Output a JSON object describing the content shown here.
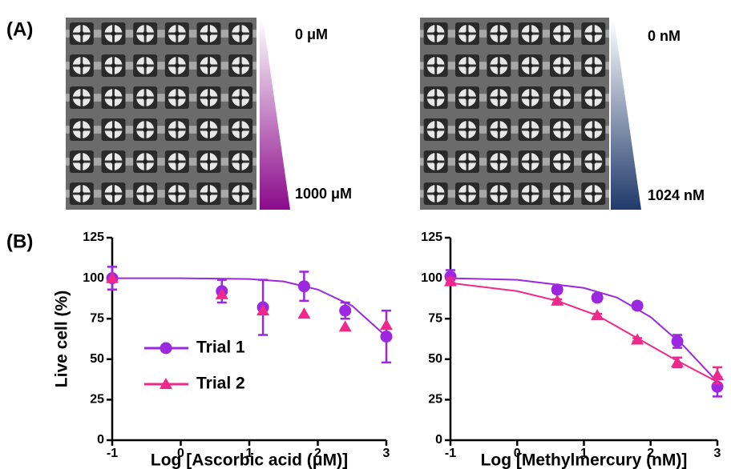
{
  "panel_labels": [
    "(A)",
    "(B)"
  ],
  "images": [
    {
      "top_label": "0 μM",
      "bottom_label": "1000 μM",
      "color": "#8b0a8b"
    },
    {
      "top_label": "0 nM",
      "bottom_label": "1024 nM",
      "color": "#1f3a6b"
    }
  ],
  "chart_data": [
    {
      "type": "scatter",
      "x_label": "Log [Ascorbic acid (μM)]",
      "y_label": "Live cell (%)",
      "xlim": [
        -1,
        3
      ],
      "xticks": [
        -1,
        0,
        1,
        2,
        3
      ],
      "ylim": [
        0,
        125
      ],
      "yticks": [
        0,
        25,
        50,
        75,
        100,
        125
      ],
      "legend": true,
      "x": [
        -1,
        0.6,
        1.2,
        1.8,
        2.4,
        3
      ],
      "series": [
        {
          "name": "Trial 1",
          "color": "#9c27e0",
          "marker": "circle",
          "values": [
            100,
            92,
            82,
            95,
            80,
            64
          ],
          "errors": [
            7,
            7,
            17,
            9,
            5,
            16
          ],
          "fit": {
            "x": [
              -1,
              0,
              1,
              1.5,
              2,
              2.5,
              3
            ],
            "values": [
              100,
              100,
              99.5,
              98,
              93,
              83,
              64
            ]
          }
        },
        {
          "name": "Trial 2",
          "color": "#f0288c",
          "marker": "triangle",
          "values": [
            100,
            90,
            80,
            78,
            70,
            71
          ],
          "errors": [
            0,
            0,
            0,
            0,
            0,
            0
          ]
        }
      ]
    },
    {
      "type": "scatter",
      "x_label": "Log [Methylmercury (nM)]",
      "xlim": [
        -1,
        3
      ],
      "xticks": [
        -1,
        0,
        1,
        2,
        3
      ],
      "ylim": [
        0,
        125
      ],
      "yticks": [
        0,
        25,
        50,
        75,
        100,
        125
      ],
      "legend": false,
      "x": [
        -1,
        0.6,
        1.2,
        1.8,
        2.4,
        3
      ],
      "series": [
        {
          "name": "Trial 1",
          "color": "#9c27e0",
          "marker": "circle",
          "values": [
            101,
            93,
            88,
            83,
            61,
            33
          ],
          "errors": [
            4,
            2,
            2,
            2,
            4,
            6
          ],
          "fit": {
            "x": [
              -1,
              0,
              1,
              1.5,
              2,
              2.5,
              3
            ],
            "values": [
              100,
              99,
              94,
              88,
              76,
              58,
              36
            ]
          }
        },
        {
          "name": "Trial 2",
          "color": "#f0288c",
          "marker": "triangle",
          "values": [
            98,
            86,
            77,
            62,
            48,
            40
          ],
          "errors": [
            2,
            1,
            1,
            1,
            3,
            5
          ],
          "fit": {
            "x": [
              -1,
              0,
              0.6,
              1.2,
              1.8,
              2.4,
              3
            ],
            "values": [
              97,
              92,
              86,
              77,
              63,
              49,
              36
            ]
          }
        }
      ]
    }
  ]
}
